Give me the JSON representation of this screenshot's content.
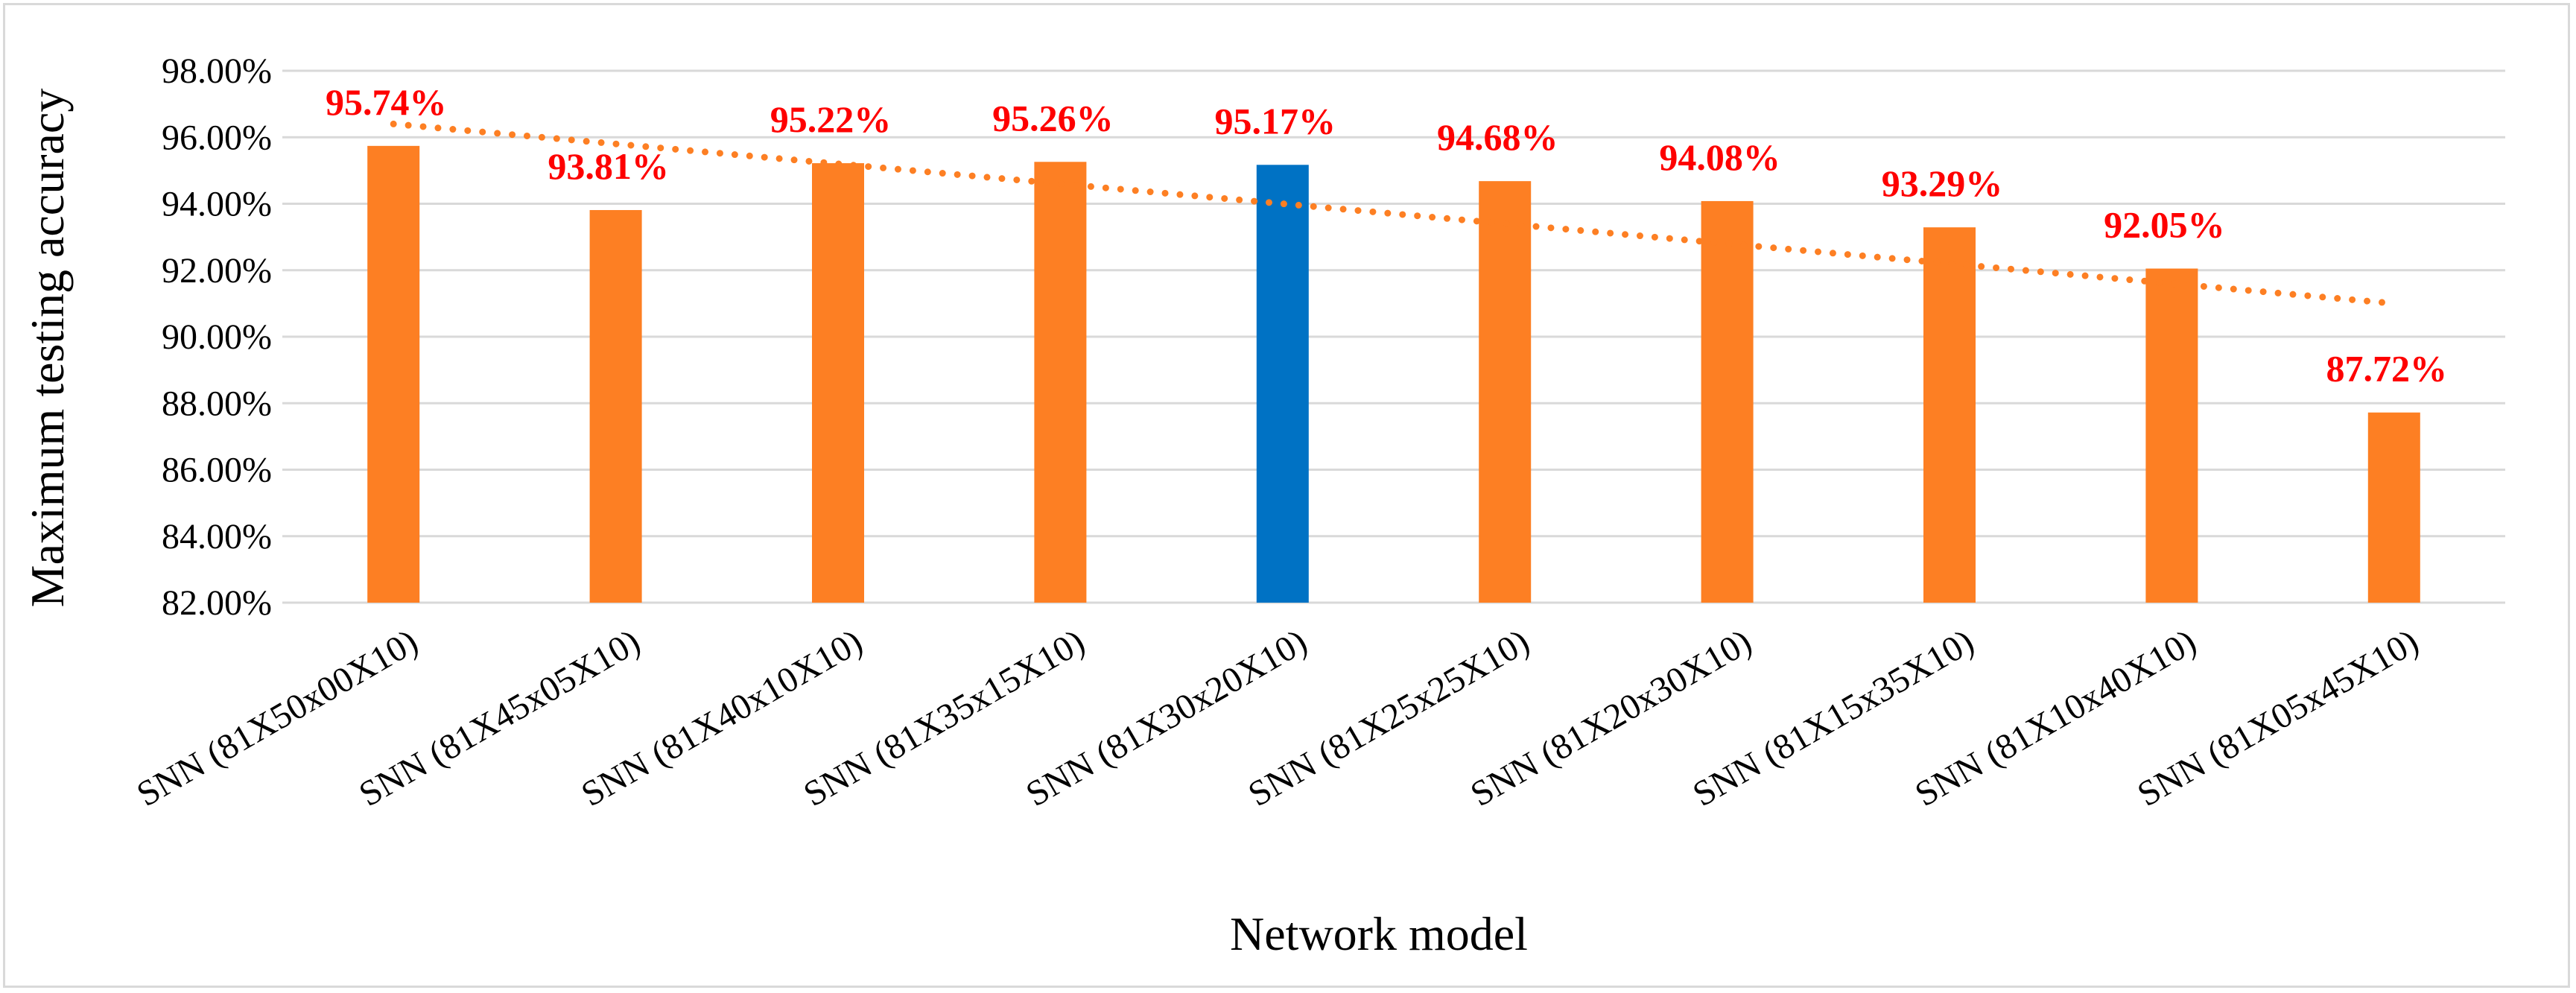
{
  "chart_data": {
    "type": "bar",
    "title": "",
    "xlabel": "Network model",
    "ylabel": "Maximum testing accuracy",
    "ylim": [
      82,
      98
    ],
    "ytick_step": 2,
    "ytick_labels": [
      "82.00%",
      "84.00%",
      "86.00%",
      "88.00%",
      "90.00%",
      "92.00%",
      "94.00%",
      "96.00%",
      "98.00%"
    ],
    "grid": true,
    "legend": "none",
    "categories": [
      "SNN (81X50x00X10)",
      "SNN (81X45x05X10)",
      "SNN (81X40x10X10)",
      "SNN (81X35x15X10)",
      "SNN (81X30x20X10)",
      "SNN (81X25x25X10)",
      "SNN (81X20x30X10)",
      "SNN (81X15x35X10)",
      "SNN (81X10x40X10)",
      "SNN (81X05x45X10)"
    ],
    "values": [
      95.74,
      93.81,
      95.22,
      95.26,
      95.17,
      94.68,
      94.08,
      93.29,
      92.05,
      87.72
    ],
    "value_labels": [
      "95.74%",
      "93.81%",
      "95.22%",
      "95.26%",
      "95.17%",
      "94.68%",
      "94.08%",
      "93.29%",
      "92.05%",
      "87.72%"
    ],
    "highlight_index": 4,
    "trendline": {
      "type": "linear",
      "style": "dotted",
      "start_value": 96.4,
      "end_value": 91.0
    },
    "colors": {
      "bar": "#fd7f23",
      "highlight_bar": "#0072c4",
      "value_label": "#fe0000",
      "trendline": "#fd7f23",
      "grid": "#d9d9d9"
    }
  }
}
